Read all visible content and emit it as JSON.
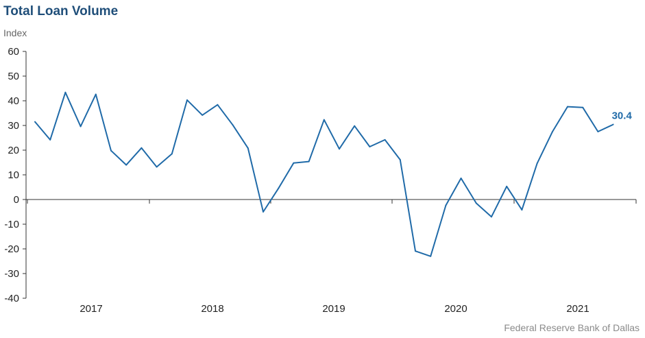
{
  "chart_data": {
    "type": "line",
    "title": "Total Loan Volume",
    "ylabel": "Index",
    "source": "Federal Reserve Bank of Dallas",
    "ylim": [
      -40,
      60
    ],
    "yticks": [
      60,
      50,
      40,
      30,
      20,
      10,
      0,
      -10,
      -20,
      -30,
      -40
    ],
    "year_labels": [
      "2017",
      "2018",
      "2019",
      "2020",
      "2021"
    ],
    "end_label": "30.4",
    "line_color": "#1f6aa8",
    "grid": false,
    "series": [
      {
        "values": [
          31.5,
          24.2,
          43.4,
          29.6,
          42.6,
          19.8,
          14.0,
          20.9,
          13.2,
          18.5,
          40.3,
          34.2,
          38.4,
          30.2,
          20.8,
          -5.0,
          4.5,
          14.8,
          15.4,
          32.3,
          20.5,
          29.8,
          21.4,
          24.2,
          16.1,
          -20.9,
          -23.0,
          -2.4,
          8.6,
          -1.5,
          -7.0,
          5.3,
          -4.2,
          14.6,
          27.4,
          37.6,
          37.3,
          27.5,
          30.4
        ]
      }
    ]
  }
}
